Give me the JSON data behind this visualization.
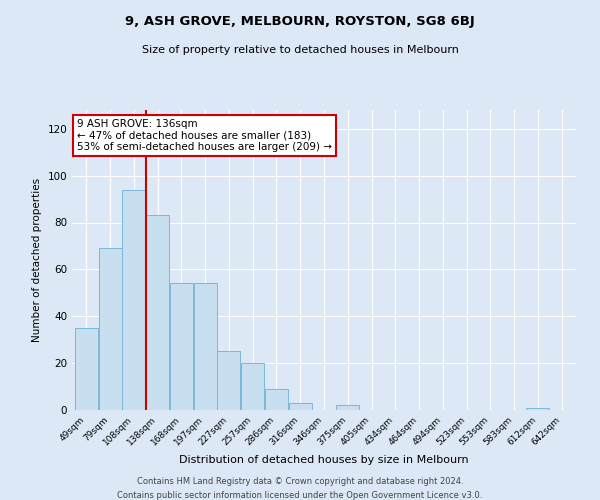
{
  "title": "9, ASH GROVE, MELBOURN, ROYSTON, SG8 6BJ",
  "subtitle": "Size of property relative to detached houses in Melbourn",
  "xlabel": "Distribution of detached houses by size in Melbourn",
  "ylabel": "Number of detached properties",
  "bin_labels": [
    "49sqm",
    "79sqm",
    "108sqm",
    "138sqm",
    "168sqm",
    "197sqm",
    "227sqm",
    "257sqm",
    "286sqm",
    "316sqm",
    "346sqm",
    "375sqm",
    "405sqm",
    "434sqm",
    "464sqm",
    "494sqm",
    "523sqm",
    "553sqm",
    "583sqm",
    "612sqm",
    "642sqm"
  ],
  "bar_values": [
    35,
    69,
    94,
    83,
    54,
    54,
    25,
    20,
    9,
    3,
    0,
    2,
    0,
    0,
    0,
    0,
    0,
    0,
    0,
    1,
    0
  ],
  "bar_color": "#c8dff0",
  "bar_edge_color": "#7ab8d8",
  "vline_color": "#cc0000",
  "annotation_text": "9 ASH GROVE: 136sqm\n← 47% of detached houses are smaller (183)\n53% of semi-detached houses are larger (209) →",
  "annotation_box_facecolor": "#ffffff",
  "annotation_box_edgecolor": "#cc0000",
  "ylim": [
    0,
    128
  ],
  "yticks": [
    0,
    20,
    40,
    60,
    80,
    100,
    120
  ],
  "footer_line1": "Contains HM Land Registry data © Crown copyright and database right 2024.",
  "footer_line2": "Contains public sector information licensed under the Open Government Licence v3.0.",
  "background_color": "#dce8f5",
  "plot_bg_color": "#dce8f5"
}
